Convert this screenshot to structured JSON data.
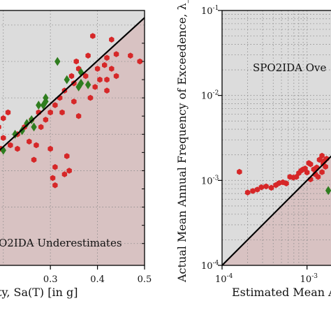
{
  "chart_data": [
    {
      "type": "scatter",
      "xlabel": "ty, Sa(T) [in g]",
      "ylabel": "",
      "xlim": [
        0.19,
        0.5
      ],
      "ylim": [
        0.17,
        0.52
      ],
      "x_ticks": [
        "0.3",
        "0.4",
        "0.5"
      ],
      "x_tick_values": [
        0.3,
        0.4,
        0.5
      ],
      "annotation": "O2IDA Underestimates",
      "grid": true,
      "colors": {
        "over_region": "#dcdcdc",
        "under_region": "#d8c2c2",
        "red": "#d62728",
        "green": "#2f7d1f",
        "line": "#000000"
      },
      "series": [
        {
          "marker": "hexagon",
          "color": "#d62728",
          "points": [
            [
              0.39,
              0.485
            ],
            [
              0.43,
              0.48
            ],
            [
              0.47,
              0.458
            ],
            [
              0.49,
              0.45
            ],
            [
              0.44,
              0.46
            ],
            [
              0.42,
              0.455
            ],
            [
              0.38,
              0.458
            ],
            [
              0.4,
              0.44
            ],
            [
              0.415,
              0.445
            ],
            [
              0.43,
              0.44
            ],
            [
              0.44,
              0.43
            ],
            [
              0.42,
              0.425
            ],
            [
              0.405,
              0.425
            ],
            [
              0.355,
              0.45
            ],
            [
              0.36,
              0.44
            ],
            [
              0.345,
              0.43
            ],
            [
              0.35,
              0.42
            ],
            [
              0.375,
              0.43
            ],
            [
              0.395,
              0.415
            ],
            [
              0.42,
              0.41
            ],
            [
              0.385,
              0.4
            ],
            [
              0.35,
              0.395
            ],
            [
              0.33,
              0.41
            ],
            [
              0.32,
              0.4
            ],
            [
              0.31,
              0.39
            ],
            [
              0.325,
              0.38
            ],
            [
              0.3,
              0.38
            ],
            [
              0.29,
              0.37
            ],
            [
              0.275,
              0.38
            ],
            [
              0.28,
              0.36
            ],
            [
              0.26,
              0.37
            ],
            [
              0.245,
              0.36
            ],
            [
              0.23,
              0.35
            ],
            [
              0.21,
              0.38
            ],
            [
              0.2,
              0.372
            ],
            [
              0.19,
              0.36
            ],
            [
              0.2,
              0.345
            ],
            [
              0.215,
              0.335
            ],
            [
              0.23,
              0.33
            ],
            [
              0.255,
              0.34
            ],
            [
              0.27,
              0.335
            ],
            [
              0.3,
              0.33
            ],
            [
              0.335,
              0.32
            ],
            [
              0.31,
              0.305
            ],
            [
              0.265,
              0.315
            ],
            [
              0.305,
              0.29
            ],
            [
              0.31,
              0.28
            ],
            [
              0.33,
              0.295
            ],
            [
              0.34,
              0.3
            ],
            [
              0.36,
              0.375
            ],
            [
              0.195,
              0.33
            ]
          ]
        },
        {
          "marker": "diamond",
          "color": "#2f7d1f",
          "points": [
            [
              0.315,
              0.45
            ],
            [
              0.365,
              0.435
            ],
            [
              0.365,
              0.42
            ],
            [
              0.335,
              0.425
            ],
            [
              0.36,
              0.415
            ],
            [
              0.38,
              0.418
            ],
            [
              0.29,
              0.4
            ],
            [
              0.29,
              0.395
            ],
            [
              0.275,
              0.39
            ],
            [
              0.285,
              0.39
            ],
            [
              0.25,
              0.365
            ],
            [
              0.26,
              0.37
            ],
            [
              0.265,
              0.36
            ],
            [
              0.24,
              0.355
            ],
            [
              0.225,
              0.35
            ],
            [
              0.2,
              0.328
            ]
          ]
        },
        {
          "marker": "line",
          "color": "#000000",
          "points": [
            [
              0.19,
              0.327
            ],
            [
              0.5,
              0.51
            ]
          ]
        }
      ]
    },
    {
      "type": "scatter",
      "xlabel": "Estimated Mean A",
      "ylabel": "Actual Mean Annual Frequency of Exceedence, λ_LS",
      "xscale": "log",
      "yscale": "log",
      "xlim": [
        0.0001,
        0.00185
      ],
      "ylim": [
        0.0001,
        0.1
      ],
      "x_ticks": [
        "10",
        "10"
      ],
      "x_tick_exponents": [
        "-4",
        "-3"
      ],
      "x_tick_values": [
        0.0001,
        0.001
      ],
      "y_ticks": [
        "10",
        "10",
        "10",
        "10"
      ],
      "y_tick_exponents": [
        "-4",
        "-3",
        "-2",
        "-1"
      ],
      "y_tick_values": [
        0.0001,
        0.001,
        0.01,
        0.1
      ],
      "annotation": "SPO2IDA Ove",
      "grid": true,
      "colors": {
        "over_region": "#dcdcdc",
        "under_region": "#d8c2c2",
        "red": "#d62728",
        "green": "#2f7d1f",
        "line": "#000000"
      },
      "series": [
        {
          "marker": "hexagon",
          "color": "#d62728",
          "points": [
            [
              0.00016,
              0.00126
            ],
            [
              0.0002,
              0.00072
            ],
            [
              0.00023,
              0.00075
            ],
            [
              0.00026,
              0.00078
            ],
            [
              0.00029,
              0.00083
            ],
            [
              0.00033,
              0.00085
            ],
            [
              0.00038,
              0.00082
            ],
            [
              0.00043,
              0.00088
            ],
            [
              0.00047,
              0.00093
            ],
            [
              0.00052,
              0.00095
            ],
            [
              0.00057,
              0.00092
            ],
            [
              0.00063,
              0.0011
            ],
            [
              0.00069,
              0.00108
            ],
            [
              0.00075,
              0.0011
            ],
            [
              0.0008,
              0.00122
            ],
            [
              0.00085,
              0.0013
            ],
            [
              0.0009,
              0.00135
            ],
            [
              0.00095,
              0.00138
            ],
            [
              0.001,
              0.00124
            ],
            [
              0.00105,
              0.0016
            ],
            [
              0.0011,
              0.00155
            ],
            [
              0.0012,
              0.00135
            ],
            [
              0.0013,
              0.00142
            ],
            [
              0.0014,
              0.00175
            ],
            [
              0.0015,
              0.00195
            ],
            [
              0.0016,
              0.0017
            ],
            [
              0.0017,
              0.0018
            ],
            [
              0.00125,
              0.00118
            ],
            [
              0.00135,
              0.0011
            ],
            [
              0.0015,
              0.00125
            ],
            [
              0.00165,
              0.00145
            ],
            [
              0.0011,
              0.00103
            ],
            [
              0.00155,
              0.00158
            ]
          ]
        },
        {
          "marker": "diamond",
          "color": "#2f7d1f",
          "points": [
            [
              0.00178,
              0.00076
            ]
          ]
        },
        {
          "marker": "line",
          "color": "#000000",
          "points": [
            [
              0.0001,
              0.0001
            ],
            [
              0.00185,
              0.00185
            ]
          ]
        }
      ]
    }
  ]
}
